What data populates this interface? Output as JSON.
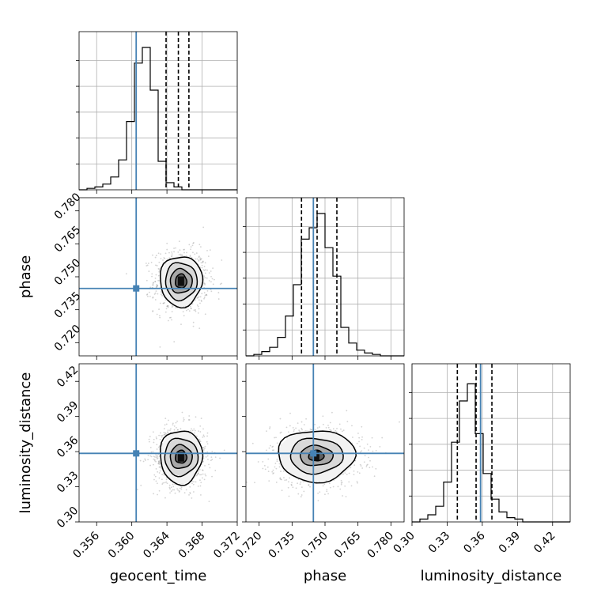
{
  "chart_data": {
    "type": "corner",
    "colors": {
      "truth": "#4682b4",
      "hist": "#000000",
      "grid": "#b0b0b0",
      "contour": "#000000",
      "samples": "#808080"
    },
    "parameters": [
      {
        "name": "geocent_time",
        "label": "geocent_time",
        "range": [
          0.354,
          0.372
        ],
        "ticks": [
          0.356,
          0.36,
          0.364,
          0.368,
          0.372
        ],
        "tick_labels": [
          "0.356",
          "0.360",
          "0.364",
          "0.368",
          "0.372"
        ],
        "truth": 0.3605,
        "quantiles": [
          0.3639,
          0.3653,
          0.3665
        ],
        "hist": {
          "edges_start": 0.354,
          "bin_width": 0.0009,
          "counts": [
            0,
            0.01,
            0.02,
            0.04,
            0.09,
            0.21,
            0.48,
            0.89,
            1.0,
            0.7,
            0.2,
            0.05,
            0.02,
            0,
            0,
            0,
            0,
            0,
            0,
            0
          ]
        }
      },
      {
        "name": "phase",
        "label": "phase",
        "range": [
          0.714,
          0.786
        ],
        "ticks": [
          0.72,
          0.735,
          0.75,
          0.765,
          0.78
        ],
        "tick_labels": [
          "0.720",
          "0.735",
          "0.750",
          "0.765",
          "0.780"
        ],
        "truth": 0.7447,
        "quantiles": [
          0.7393,
          0.7464,
          0.7554
        ],
        "hist": {
          "edges_start": 0.714,
          "bin_width": 0.0036,
          "counts": [
            0,
            0.01,
            0.03,
            0.06,
            0.13,
            0.28,
            0.5,
            0.82,
            0.9,
            1.0,
            0.76,
            0.56,
            0.2,
            0.09,
            0.04,
            0.02,
            0.01,
            0,
            0,
            0
          ]
        }
      },
      {
        "name": "luminosity_distance",
        "label": "luminosity_distance",
        "range": [
          0.3,
          0.435
        ],
        "ticks": [
          0.3,
          0.33,
          0.36,
          0.39,
          0.42
        ],
        "tick_labels": [
          "0.30",
          "0.33",
          "0.36",
          "0.39",
          "0.42"
        ],
        "truth": 0.3585,
        "quantiles": [
          0.3387,
          0.3547,
          0.3682
        ],
        "hist": {
          "edges_start": 0.3,
          "bin_width": 0.00675,
          "counts": [
            0,
            0.02,
            0.05,
            0.11,
            0.28,
            0.56,
            0.85,
            0.97,
            0.62,
            0.34,
            0.16,
            0.07,
            0.03,
            0.02,
            0,
            0,
            0,
            0,
            0,
            0
          ]
        }
      }
    ],
    "pairs": [
      {
        "x": "geocent_time",
        "y": "phase",
        "center": [
          0.3656,
          0.748
        ],
        "contour_widths": [
          [
            0.00065,
            0.0032
          ],
          [
            0.00125,
            0.0055
          ],
          [
            0.0018,
            0.0085
          ],
          [
            0.0024,
            0.0115
          ]
        ],
        "scatter_spread": [
          0.0014,
          0.0065
        ]
      },
      {
        "x": "geocent_time",
        "y": "luminosity_distance",
        "center": [
          0.3656,
          0.3555
        ],
        "contour_widths": [
          [
            0.00065,
            0.0055
          ],
          [
            0.00125,
            0.01
          ],
          [
            0.0019,
            0.016
          ],
          [
            0.0024,
            0.023
          ]
        ],
        "scatter_spread": [
          0.0014,
          0.012
        ]
      },
      {
        "x": "phase",
        "y": "luminosity_distance",
        "center": [
          0.746,
          0.3565
        ],
        "contour_widths": [
          [
            0.0035,
            0.0045
          ],
          [
            0.0075,
            0.0085
          ],
          [
            0.012,
            0.015
          ],
          [
            0.0175,
            0.022
          ]
        ],
        "scatter_spread": [
          0.0095,
          0.012
        ]
      }
    ]
  }
}
